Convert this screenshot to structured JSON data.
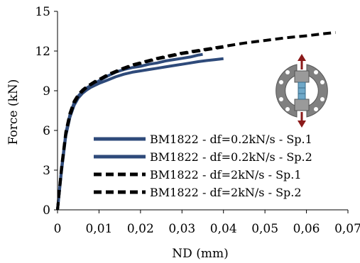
{
  "chart_data": {
    "type": "line",
    "title": "",
    "xlabel": "ND (mm)",
    "ylabel": "Force (kN)",
    "xlim": [
      0,
      0.07
    ],
    "ylim": [
      0,
      15
    ],
    "x_ticks": [
      0,
      0.01,
      0.02,
      0.03,
      0.04,
      0.05,
      0.06,
      0.07
    ],
    "x_tick_labels": [
      "0",
      "0,01",
      "0,02",
      "0,03",
      "0,04",
      "0,05",
      "0,06",
      "0,07"
    ],
    "y_ticks": [
      0,
      3,
      6,
      9,
      12,
      15
    ],
    "y_tick_labels": [
      "0",
      "3",
      "6",
      "9",
      "12",
      "15"
    ],
    "grid": false,
    "legend_position": "bottom-right",
    "colors": {
      "blue_series": "#2e4a7a",
      "black_series": "#000000",
      "arrow": "#8b1a1a",
      "clamp": "#808080",
      "specimen": "#6fa8c8"
    },
    "inset_icon": "tensile-specimen-clamp-with-arrows",
    "series": [
      {
        "name": "BM1822 - df=0.2kN/s - Sp.1",
        "style": "solid",
        "color": "#2e4a7a",
        "x": [
          0,
          0.001,
          0.002,
          0.003,
          0.004,
          0.005,
          0.006,
          0.007,
          0.008,
          0.009,
          0.01,
          0.012,
          0.014,
          0.016,
          0.018,
          0.02,
          0.022,
          0.024,
          0.026,
          0.028,
          0.03,
          0.032,
          0.034,
          0.035
        ],
        "y": [
          0,
          3.2,
          5.8,
          7.2,
          8.1,
          8.6,
          8.95,
          9.2,
          9.4,
          9.55,
          9.75,
          10.1,
          10.4,
          10.6,
          10.75,
          10.85,
          11.0,
          11.1,
          11.25,
          11.35,
          11.45,
          11.55,
          11.7,
          11.75
        ]
      },
      {
        "name": "BM1822 - df=0.2kN/s - Sp.2",
        "style": "solid",
        "color": "#2e4a7a",
        "x": [
          0,
          0.001,
          0.002,
          0.003,
          0.004,
          0.005,
          0.006,
          0.007,
          0.008,
          0.009,
          0.01,
          0.012,
          0.014,
          0.016,
          0.018,
          0.02,
          0.022,
          0.024,
          0.026,
          0.028,
          0.03,
          0.032,
          0.034,
          0.036,
          0.038,
          0.04
        ],
        "y": [
          0,
          3.0,
          5.6,
          7.0,
          7.9,
          8.45,
          8.8,
          9.05,
          9.25,
          9.4,
          9.55,
          9.8,
          10.05,
          10.25,
          10.4,
          10.5,
          10.6,
          10.7,
          10.8,
          10.9,
          11.0,
          11.1,
          11.2,
          11.28,
          11.35,
          11.42
        ]
      },
      {
        "name": "BM1822 - df=2kN/s - Sp.1",
        "style": "dashed",
        "color": "#000000",
        "x": [
          0,
          0.001,
          0.002,
          0.003,
          0.004,
          0.005,
          0.006,
          0.007,
          0.008,
          0.009,
          0.01,
          0.012,
          0.015,
          0.018,
          0.021,
          0.024,
          0.027,
          0.03,
          0.033,
          0.036,
          0.04,
          0.045,
          0.05,
          0.055,
          0.06,
          0.064,
          0.067
        ],
        "y": [
          0,
          3.3,
          5.9,
          7.3,
          8.2,
          8.7,
          9.05,
          9.3,
          9.5,
          9.7,
          9.85,
          10.2,
          10.6,
          10.95,
          11.2,
          11.45,
          11.65,
          11.85,
          12.0,
          12.15,
          12.35,
          12.6,
          12.8,
          13.0,
          13.15,
          13.3,
          13.4
        ]
      },
      {
        "name": "BM1822 - df=2kN/s - Sp.2",
        "style": "dashed",
        "color": "#000000",
        "x": [
          0,
          0.001,
          0.002,
          0.003,
          0.004,
          0.005,
          0.006,
          0.007,
          0.008,
          0.009,
          0.01,
          0.012,
          0.015,
          0.018,
          0.021,
          0.024,
          0.027,
          0.03,
          0.033,
          0.036,
          0.04
        ],
        "y": [
          0,
          3.1,
          5.7,
          7.1,
          8.05,
          8.6,
          8.95,
          9.25,
          9.45,
          9.65,
          9.8,
          10.15,
          10.55,
          10.9,
          11.15,
          11.4,
          11.6,
          11.8,
          11.95,
          12.1,
          12.3
        ]
      }
    ]
  }
}
